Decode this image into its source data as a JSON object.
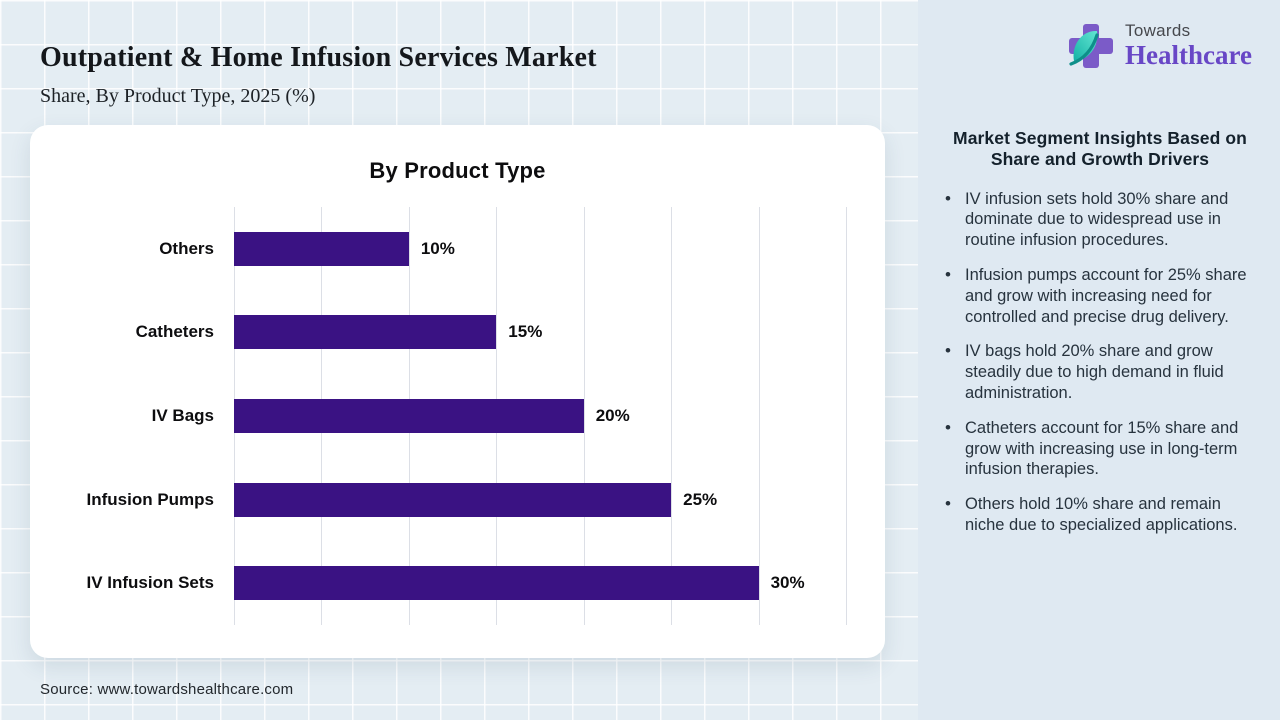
{
  "header": {
    "title": "Outpatient & Home Infusion Services Market",
    "subtitle": "Share, By Product Type, 2025 (%)"
  },
  "logo": {
    "brand_top": "Towards",
    "brand_bottom": "Healthcare",
    "mark": "purple-cross-with-teal-leaf"
  },
  "chart_data": {
    "type": "bar",
    "orientation": "horizontal",
    "title": "By Product Type",
    "categories": [
      "Others",
      "Catheters",
      "IV Bags",
      "Infusion Pumps",
      "IV Infusion Sets"
    ],
    "values": [
      10,
      15,
      20,
      25,
      30
    ],
    "value_labels": [
      "10%",
      "15%",
      "20%",
      "25%",
      "30%"
    ],
    "unit": "%",
    "xlim": [
      0,
      35
    ],
    "gridline_step": 5,
    "grid": true,
    "legend": "none",
    "bar_color": "#3a1283"
  },
  "insights": {
    "heading": "Market Segment Insights Based on Share and Growth Drivers",
    "bullets": [
      "IV infusion sets hold 30% share and dominate due to widespread use in routine infusion procedures.",
      "Infusion pumps account for 25% share and grow with increasing need for controlled and precise drug delivery.",
      "IV bags hold 20% share and grow steadily due to high demand in fluid administration.",
      "Catheters account for 15% share and grow with increasing use in long-term infusion therapies.",
      "Others hold 10% share and remain niche due to specialized applications."
    ]
  },
  "footer": {
    "source": "Source: www.towardshealthcare.com"
  },
  "colors": {
    "bar_purple": "#3a1283",
    "logo_purple": "#7b5bc8",
    "logo_teal": "#2fc9be",
    "panel_bg": "#dfe9f2",
    "page_bg": "#e4edf3"
  }
}
